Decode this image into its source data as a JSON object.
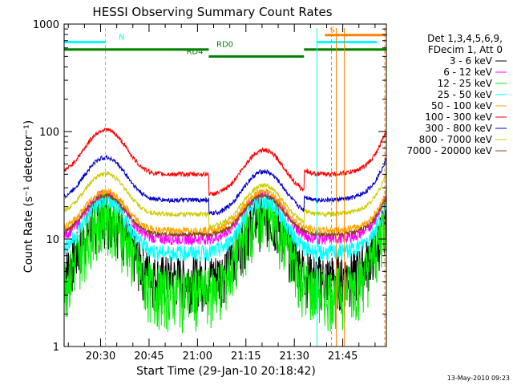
{
  "chart_data": {
    "type": "line",
    "title": "HESSI Observing Summary Count Rates",
    "xlabel": "Start Time (29-Jan-10 20:18:42)",
    "ylabel": "Count Rate (s⁻¹ detector⁻¹)",
    "x_tick_labels": [
      "20:30",
      "20:45",
      "21:00",
      "21:15",
      "21:30",
      "21:45"
    ],
    "x_tick_minutes": [
      30,
      45,
      60,
      75,
      90,
      105
    ],
    "xlim_minutes_after_20h": [
      18.7,
      118.5
    ],
    "y_scale": "log",
    "ylim": [
      1,
      1000
    ],
    "y_tick_labels": [
      "1",
      "10",
      "100",
      "1000"
    ],
    "grid": false,
    "legend_position": "right",
    "legend_header": [
      "Det 1,3,4,5,6,9,",
      "FDecim 1, Att 0"
    ],
    "series": [
      {
        "name": "3 - 6 keV",
        "color": "#000000",
        "base": 4.5,
        "peak_factor": 3.8,
        "noise": 0.55,
        "step": 1.0
      },
      {
        "name": "6 - 12 keV",
        "color": "#ff00ff",
        "base": 10,
        "peak_factor": 2.6,
        "noise": 0.12,
        "step": 1.0
      },
      {
        "name": "12 - 25 keV",
        "color": "#00ee00",
        "base": 3.3,
        "peak_factor": 5.2,
        "noise": 0.6,
        "step": 1.0
      },
      {
        "name": "25 - 50 keV",
        "color": "#00ffff",
        "base": 7.5,
        "peak_factor": 3.0,
        "noise": 0.18,
        "step": 1.0
      },
      {
        "name": "50 - 100 keV",
        "color": "#ffa500",
        "base": 12,
        "peak_factor": 2.3,
        "noise": 0.08,
        "step": 1.0
      },
      {
        "name": "100 - 300 keV",
        "color": "#ff0000",
        "base": 40,
        "peak_factor": 2.6,
        "noise": 0.05,
        "step": 1.55
      },
      {
        "name": "300 - 800 keV",
        "color": "#0000cc",
        "base": 23,
        "peak_factor": 2.5,
        "noise": 0.05,
        "step": 1.35
      },
      {
        "name": "800 - 7000 keV",
        "color": "#cccc00",
        "base": 17,
        "peak_factor": 2.4,
        "noise": 0.05,
        "step": 1.3
      },
      {
        "name": "7000 - 20000 keV",
        "color": "#8b4513",
        "base": 11,
        "peak_factor": 2.3,
        "noise": 0.05,
        "step": 1.0
      }
    ],
    "profile": {
      "peaks_minutes": [
        31.5,
        80.5
      ],
      "peak_width_minutes": 7.5,
      "gap_minutes": [
        0,
        0
      ],
      "end_rise_minute": 118.5
    },
    "annotations": {
      "flags": [
        {
          "label": "N",
          "color": "#00ffff",
          "x_start": 18.7,
          "x_end": 31.5,
          "level": 680
        },
        {
          "label": "RD0",
          "color": "#008000",
          "x_start": 18.7,
          "x_end": 63.5,
          "level": 580
        },
        {
          "label": "RD4",
          "color": "#008000",
          "x_start": 63.5,
          "x_end": 93.0,
          "level": 500
        },
        {
          "label": "",
          "color": "#008000",
          "x_start": 93.0,
          "x_end": 118.5,
          "level": 580
        },
        {
          "label": "",
          "color": "#00ffff",
          "x_start": 97.0,
          "x_end": 115.5,
          "level": 680
        },
        {
          "label": "S",
          "color": "#ff8000",
          "x_start": 99.5,
          "x_end": 118.5,
          "level": 790
        }
      ],
      "vlines": [
        {
          "minute": 31.5,
          "color": "#00ffff",
          "style": "dashed"
        },
        {
          "minute": 97.0,
          "color": "#00ffff",
          "style": "solid"
        },
        {
          "minute": 101.5,
          "color": "#ff8000",
          "style": "dashed"
        },
        {
          "minute": 103.0,
          "color": "#ff8000",
          "style": "solid"
        },
        {
          "minute": 105.5,
          "color": "#ff8000",
          "style": "solid"
        },
        {
          "minute": 118.0,
          "color": "#ff8000",
          "style": "dashed"
        },
        {
          "minute": 18.7,
          "color": "#00ffff",
          "style": "solid"
        }
      ]
    }
  },
  "timestamp": "13-May-2010 09:23"
}
